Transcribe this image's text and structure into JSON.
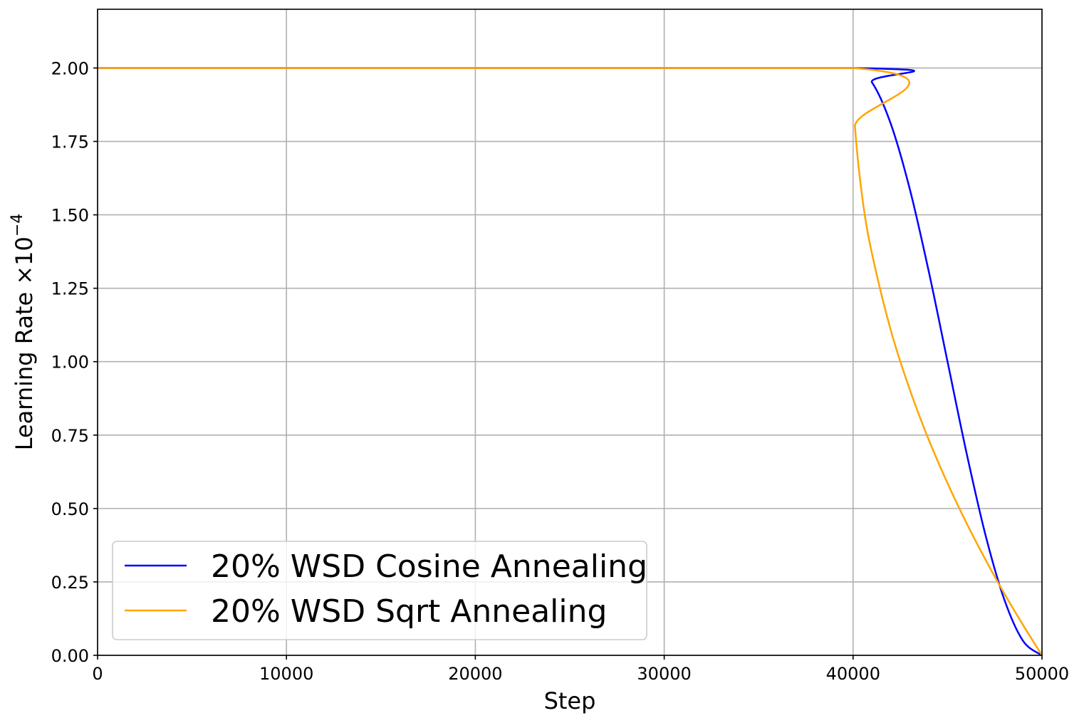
{
  "chart_data": {
    "type": "line",
    "xlabel": "Step",
    "ylabel_main": "Learning Rate ×10",
    "ylabel_exp": "−4",
    "xlim": [
      0,
      50000
    ],
    "ylim": [
      0,
      2.2
    ],
    "xticks": [
      0,
      10000,
      20000,
      30000,
      40000,
      50000
    ],
    "xtick_labels": [
      "0",
      "10000",
      "20000",
      "30000",
      "40000",
      "50000"
    ],
    "yticks": [
      0,
      0.25,
      0.5,
      0.75,
      1.0,
      1.25,
      1.5,
      1.75,
      2.0
    ],
    "ytick_labels": [
      "0.00",
      "0.25",
      "0.50",
      "0.75",
      "1.00",
      "1.25",
      "1.50",
      "1.75",
      "2.00"
    ],
    "grid": true,
    "legend_position": "lower-left",
    "series": [
      {
        "name": "20% WSD Cosine Annealing",
        "color": "#0000ff",
        "x": [
          0,
          40000,
          41000,
          42000,
          43000,
          44000,
          45000,
          46000,
          47000,
          48000,
          49000,
          50000
        ],
        "y": [
          2.0,
          2.0,
          1.951,
          1.809,
          1.588,
          1.309,
          1.0,
          0.691,
          0.412,
          0.191,
          0.049,
          0.0
        ]
      },
      {
        "name": "20% WSD Sqrt Annealing",
        "color": "#ffa500",
        "x": [
          0,
          40000,
          40100,
          40500,
          41000,
          42000,
          43000,
          44000,
          45000,
          46000,
          47000,
          48000,
          49000,
          50000
        ],
        "y": [
          2.0,
          2.0,
          1.8,
          1.553,
          1.368,
          1.106,
          0.905,
          0.735,
          0.586,
          0.451,
          0.327,
          0.211,
          0.103,
          0.0
        ]
      }
    ]
  }
}
